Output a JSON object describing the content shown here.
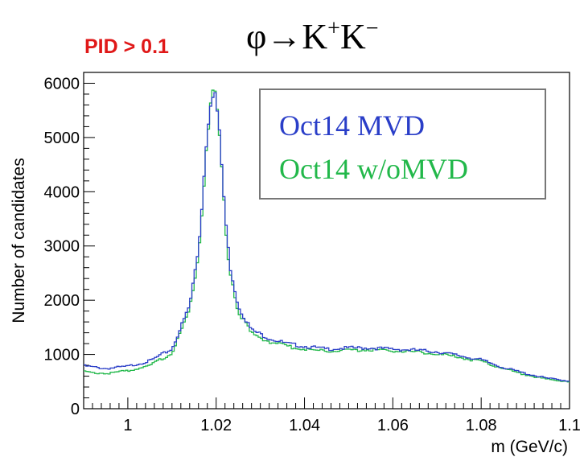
{
  "pid_label": "PID > 0.1",
  "title_main": "φ→K",
  "title_sup1": "+",
  "title_mid": "K",
  "title_sup2": "−",
  "colors": {
    "series_mvd": "#2a3ec8",
    "series_womvd": "#22b84a",
    "pid_label": "#e01818",
    "legend_border": "#777777"
  },
  "chart_data": {
    "type": "line",
    "step": true,
    "xlabel": "m (GeV/c)",
    "ylabel": "Number of candidates",
    "xlim": [
      0.99,
      1.1
    ],
    "ylim": [
      0,
      6200
    ],
    "x_ticks": [
      1,
      1.02,
      1.04,
      1.06,
      1.08,
      1.1
    ],
    "x_tick_labels": [
      "1",
      "1.02",
      "1.04",
      "1.06",
      "1.08",
      "1.1"
    ],
    "y_ticks": [
      0,
      1000,
      2000,
      3000,
      4000,
      5000,
      6000
    ],
    "y_tick_labels": [
      "0",
      "1000",
      "2000",
      "3000",
      "4000",
      "5000",
      "6000"
    ],
    "legend_position": "top-right",
    "series": [
      {
        "name": "Oct14 MVD",
        "x": [
          0.99,
          0.995,
          1.0,
          1.005,
          1.01,
          1.014,
          1.016,
          1.017,
          1.018,
          1.019,
          1.0195,
          1.02,
          1.021,
          1.022,
          1.023,
          1.025,
          1.028,
          1.032,
          1.036,
          1.04,
          1.045,
          1.05,
          1.055,
          1.06,
          1.065,
          1.07,
          1.075,
          1.08,
          1.085,
          1.09,
          1.095,
          1.1
        ],
        "y": [
          790,
          740,
          780,
          880,
          1100,
          1900,
          2950,
          4000,
          5200,
          5850,
          5900,
          5700,
          4800,
          3600,
          2700,
          1900,
          1450,
          1300,
          1200,
          1150,
          1100,
          1120,
          1120,
          1100,
          1080,
          1050,
          980,
          900,
          760,
          650,
          560,
          510
        ]
      },
      {
        "name": "Oct14 w/oMVD",
        "x": [
          0.99,
          0.995,
          1.0,
          1.005,
          1.01,
          1.014,
          1.016,
          1.017,
          1.018,
          1.019,
          1.0195,
          1.02,
          1.021,
          1.022,
          1.023,
          1.025,
          1.028,
          1.032,
          1.036,
          1.04,
          1.045,
          1.05,
          1.055,
          1.06,
          1.065,
          1.07,
          1.075,
          1.08,
          1.085,
          1.09,
          1.095,
          1.1
        ],
        "y": [
          680,
          650,
          700,
          800,
          1020,
          1800,
          2850,
          3900,
          5100,
          5750,
          5800,
          5600,
          4700,
          3500,
          2600,
          1800,
          1380,
          1240,
          1150,
          1100,
          1060,
          1080,
          1090,
          1070,
          1050,
          1010,
          950,
          870,
          740,
          630,
          540,
          500
        ]
      }
    ]
  }
}
